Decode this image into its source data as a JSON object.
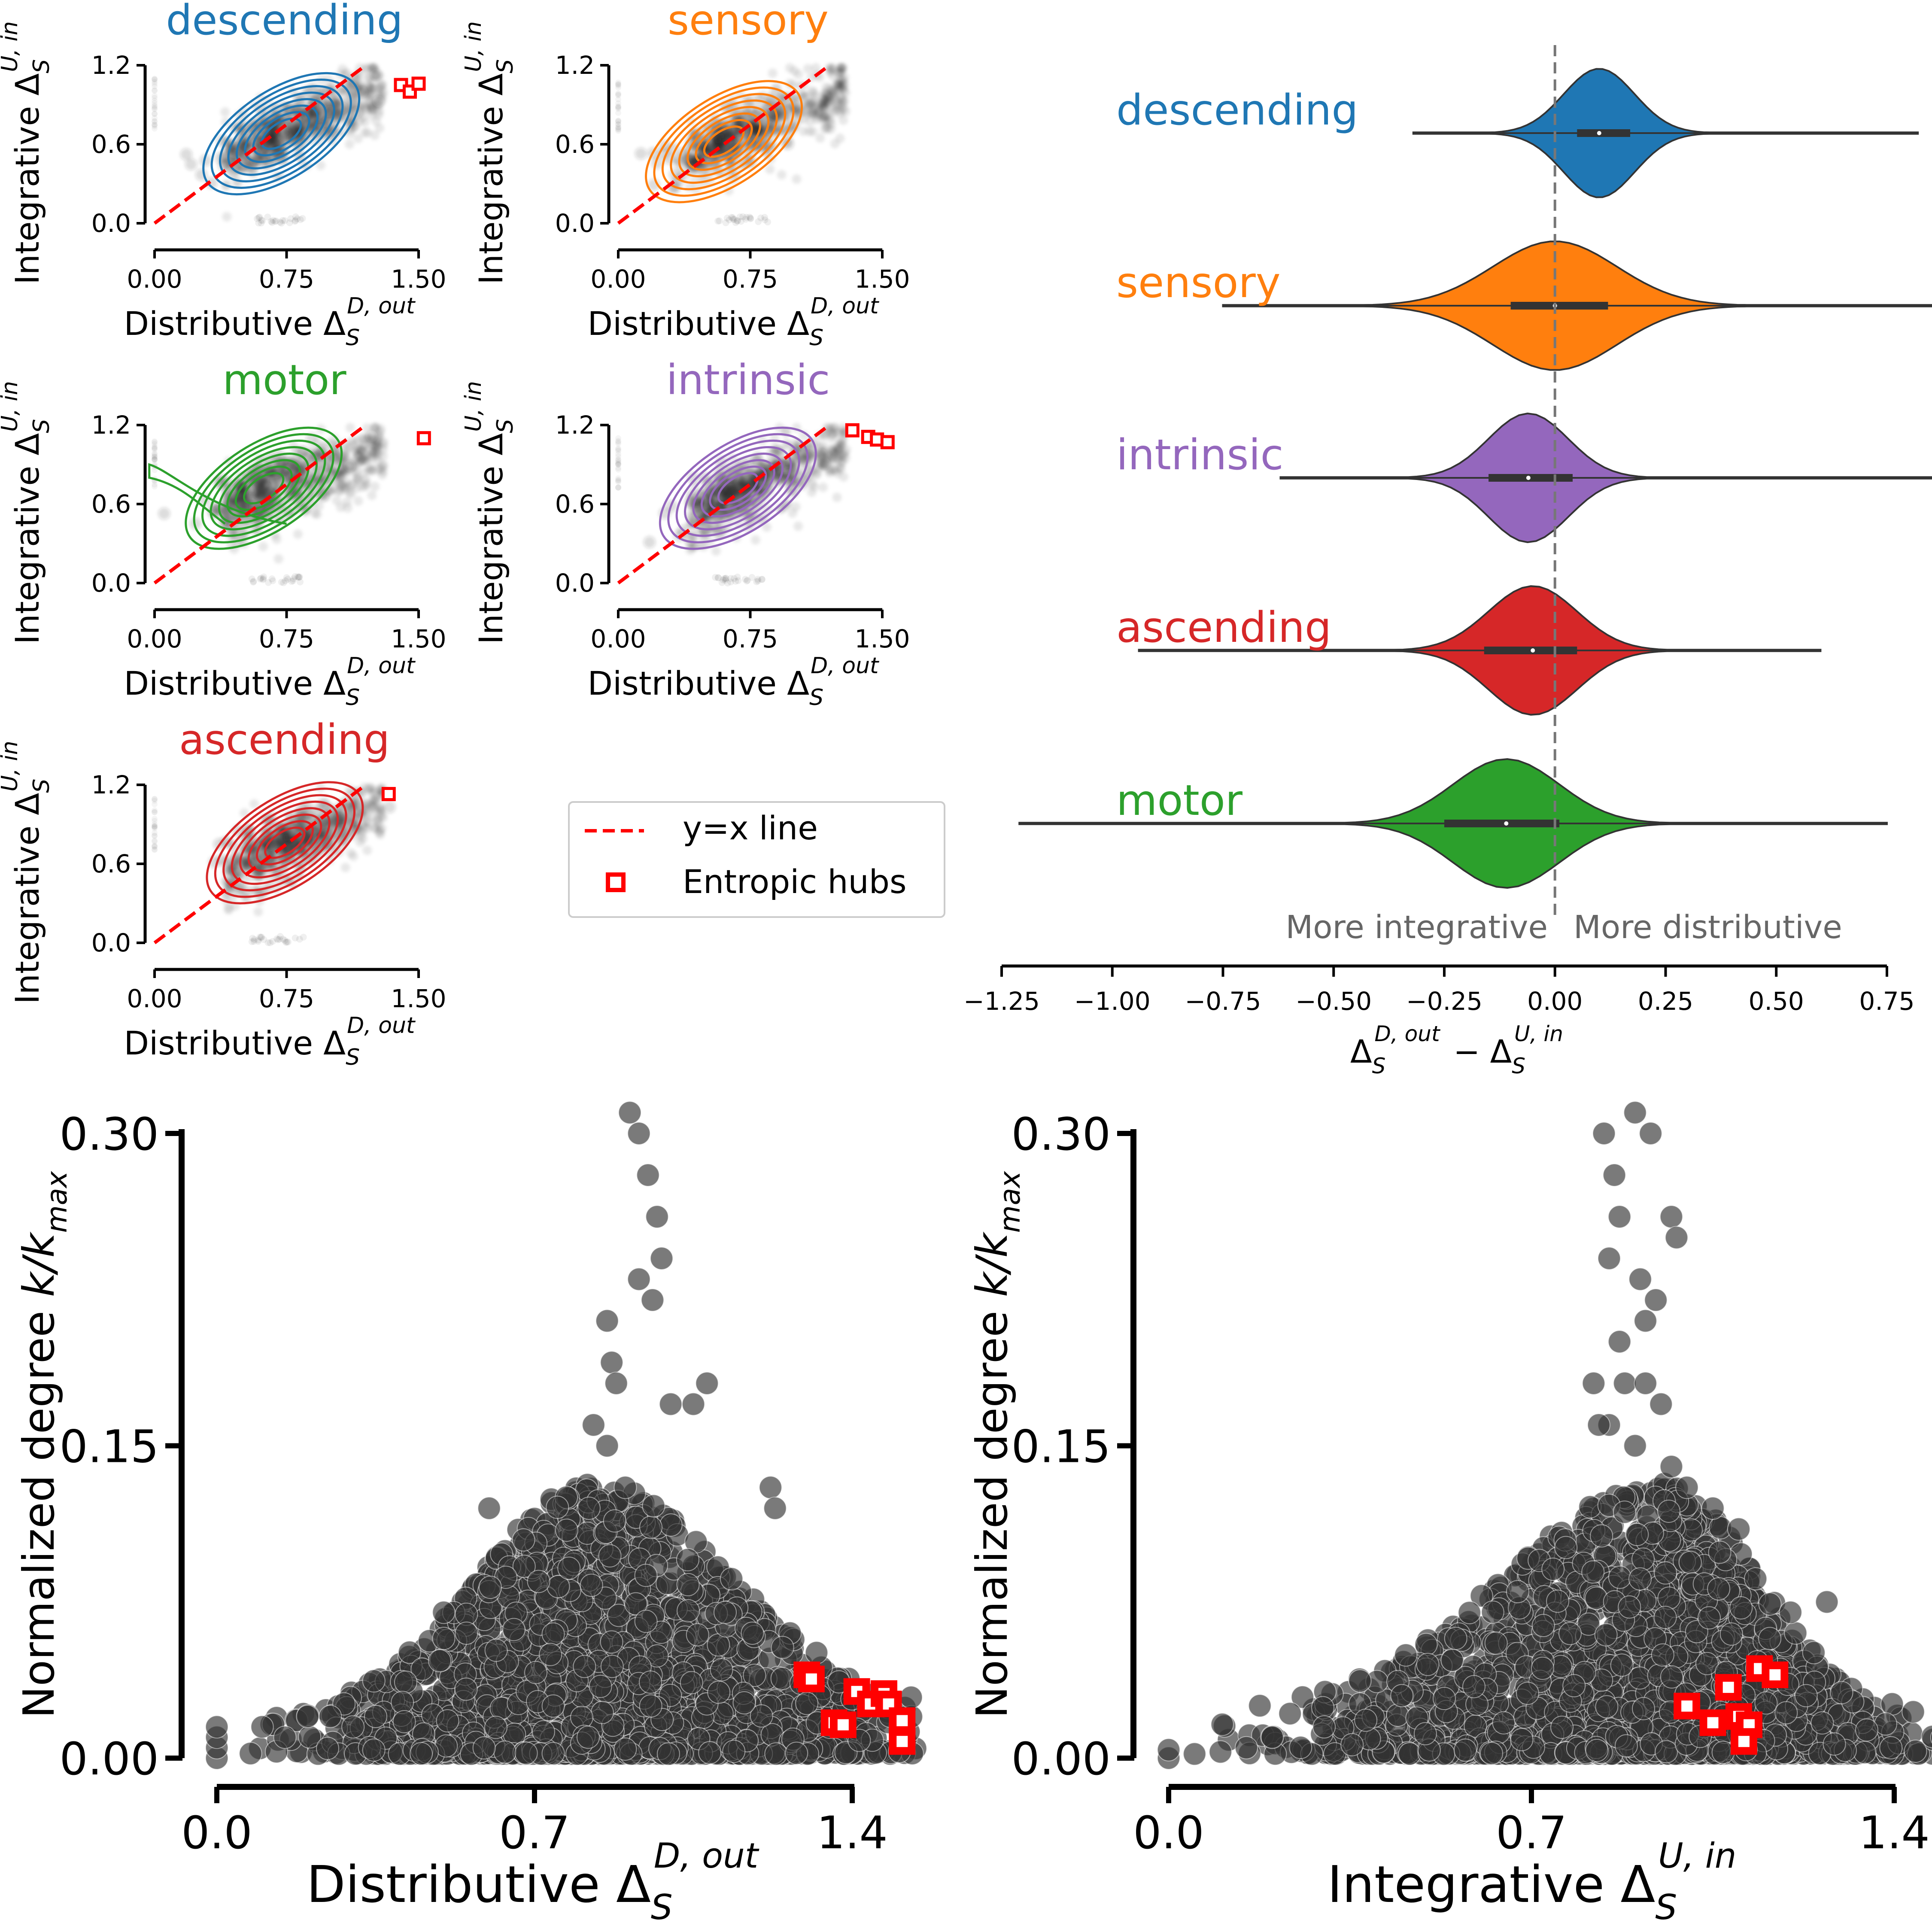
{
  "small_panels": {
    "xlabel_main": "Distributive Δ",
    "xlabel_sub": "S",
    "xlabel_sup": "D, out",
    "ylabel_main": "Integrative Δ",
    "ylabel_sub": "S",
    "ylabel_sup": "U, in"
  },
  "legend": {
    "yx_line": "y=x line",
    "hubs": "Entropic hubs"
  },
  "violin": {
    "xlabel_a": "Δ",
    "xlabel_a_sub": "S",
    "xlabel_a_sup": "D, out",
    "xlabel_minus": "−",
    "xlabel_b": "Δ",
    "xlabel_b_sub": "S",
    "xlabel_b_sup": "U, in",
    "more_integrative": "More integrative",
    "more_distributive": "More distributive"
  },
  "bottom": {
    "ylabel": "Normalized degree ",
    "ylabel_k": "k/k",
    "ylabel_k_sub": "max",
    "left_xlabel_main": "Distributive Δ",
    "left_xlabel_sub": "S",
    "left_xlabel_sup": "D, out",
    "right_xlabel_main": "Integrative Δ",
    "right_xlabel_sub": "S",
    "right_xlabel_sup": "U, in"
  },
  "colors": {
    "descending": "#1f77b4",
    "sensory": "#ff7f0e",
    "motor": "#2ca02c",
    "intrinsic": "#9467bd",
    "ascending": "#d62728",
    "hub": "#ff0000",
    "points": "#333333",
    "vline": "#777777",
    "annot": "#666666"
  },
  "chart_data": [
    {
      "type": "scatter",
      "title": "descending",
      "xlabel": "Distributive Δ_S^{D,out}",
      "ylabel": "Integrative Δ_S^{U,in}",
      "x_ticks": [
        "0.00",
        "0.75",
        "1.50"
      ],
      "y_ticks": [
        "0.0",
        "0.6",
        "1.2"
      ],
      "xlim": [
        0,
        1.5
      ],
      "ylim": [
        0,
        1.2
      ],
      "center": [
        0.72,
        0.68
      ],
      "hubs": [
        [
          1.4,
          1.05
        ],
        [
          1.45,
          1.0
        ],
        [
          1.5,
          1.06
        ]
      ]
    },
    {
      "type": "scatter",
      "title": "sensory",
      "xlabel": "Distributive Δ_S^{D,out}",
      "ylabel": "Integrative Δ_S^{U,in}",
      "x_ticks": [
        "0.00",
        "0.75",
        "1.50"
      ],
      "y_ticks": [
        "0.0",
        "0.6",
        "1.2"
      ],
      "xlim": [
        0,
        1.5
      ],
      "ylim": [
        0,
        1.2
      ],
      "center": [
        0.6,
        0.62
      ],
      "hubs": []
    },
    {
      "type": "scatter",
      "title": "motor",
      "xlabel": "Distributive Δ_S^{D,out}",
      "ylabel": "Integrative Δ_S^{U,in}",
      "x_ticks": [
        "0.00",
        "0.75",
        "1.50"
      ],
      "y_ticks": [
        "0.0",
        "0.6",
        "1.2"
      ],
      "xlim": [
        0,
        1.5
      ],
      "ylim": [
        0,
        1.2
      ],
      "center": [
        0.62,
        0.72
      ],
      "hubs": [
        [
          1.53,
          1.1
        ]
      ]
    },
    {
      "type": "scatter",
      "title": "intrinsic",
      "xlabel": "Distributive Δ_S^{D,out}",
      "ylabel": "Integrative Δ_S^{U,in}",
      "x_ticks": [
        "0.00",
        "0.75",
        "1.50"
      ],
      "y_ticks": [
        "0.0",
        "0.6",
        "1.2"
      ],
      "xlim": [
        0,
        1.5
      ],
      "ylim": [
        0,
        1.2
      ],
      "center": [
        0.68,
        0.72
      ],
      "hubs": [
        [
          1.33,
          1.16
        ],
        [
          1.42,
          1.11
        ],
        [
          1.47,
          1.09
        ],
        [
          1.53,
          1.07
        ]
      ]
    },
    {
      "type": "scatter",
      "title": "ascending",
      "xlabel": "Distributive Δ_S^{D,out}",
      "ylabel": "Integrative Δ_S^{U,in}",
      "x_ticks": [
        "0.00",
        "0.75",
        "1.50"
      ],
      "y_ticks": [
        "0.0",
        "0.6",
        "1.2"
      ],
      "xlim": [
        0,
        1.5
      ],
      "ylim": [
        0,
        1.2
      ],
      "center": [
        0.74,
        0.76
      ],
      "hubs": [
        [
          1.33,
          1.13
        ]
      ]
    },
    {
      "type": "violin",
      "xlabel": "Δ_S^{D,out} − Δ_S^{U,in}",
      "x_ticks": [
        "−1.25",
        "−1.00",
        "−0.75",
        "−0.50",
        "−0.25",
        "0.00",
        "0.25",
        "0.50",
        "0.75"
      ],
      "x_tick_values": [
        -1.25,
        -1.0,
        -0.75,
        -0.5,
        -0.25,
        0.0,
        0.25,
        0.5,
        0.75
      ],
      "xlim": [
        -1.25,
        0.75
      ],
      "reference_line": 0.0,
      "series": [
        {
          "name": "descending",
          "median": 0.1,
          "q1": 0.05,
          "q3": 0.17,
          "min": -0.32,
          "max": 0.82,
          "sd": 0.08
        },
        {
          "name": "sensory",
          "median": 0.0,
          "q1": -0.1,
          "q3": 0.12,
          "min": -0.75,
          "max": 0.94,
          "sd": 0.14
        },
        {
          "name": "intrinsic",
          "median": -0.06,
          "q1": -0.15,
          "q3": 0.04,
          "min": -0.62,
          "max": 0.92,
          "sd": 0.09
        },
        {
          "name": "ascending",
          "median": -0.05,
          "q1": -0.16,
          "q3": 0.05,
          "min": -0.94,
          "max": 0.6,
          "sd": 0.1
        },
        {
          "name": "motor",
          "median": -0.11,
          "q1": -0.25,
          "q3": 0.01,
          "min": -1.21,
          "max": 0.75,
          "sd": 0.12
        }
      ]
    },
    {
      "type": "scatter",
      "xlabel": "Distributive Δ_S^{D,out}",
      "ylabel": "Normalized degree k/k_max",
      "x_ticks": [
        "0.0",
        "0.7",
        "1.4"
      ],
      "y_ticks": [
        "0.00",
        "0.15",
        "0.30"
      ],
      "xlim": [
        0,
        1.4
      ],
      "ylim": [
        0,
        0.3
      ],
      "points_sample": [
        [
          0.91,
          0.31
        ],
        [
          0.93,
          0.3
        ],
        [
          0.95,
          0.28
        ],
        [
          0.97,
          0.26
        ],
        [
          0.93,
          0.23
        ],
        [
          0.96,
          0.22
        ],
        [
          0.98,
          0.24
        ],
        [
          0.86,
          0.21
        ],
        [
          0.87,
          0.19
        ],
        [
          0.88,
          0.18
        ],
        [
          1.08,
          0.18
        ],
        [
          1.0,
          0.17
        ],
        [
          1.05,
          0.17
        ],
        [
          0.83,
          0.16
        ],
        [
          0.86,
          0.15
        ],
        [
          0.82,
          0.12
        ],
        [
          0.9,
          0.13
        ],
        [
          1.22,
          0.13
        ],
        [
          1.23,
          0.12
        ],
        [
          0.6,
          0.12
        ],
        [
          0.5,
          0.07
        ],
        [
          0.55,
          0.06
        ],
        [
          1.18,
          0.06
        ],
        [
          1.12,
          0.07
        ],
        [
          0.0,
          0.0
        ],
        [
          0.0,
          0.005
        ],
        [
          0.0,
          0.01
        ],
        [
          0.0,
          0.015
        ],
        [
          0.1,
          0.015
        ],
        [
          0.15,
          0.01
        ],
        [
          0.2,
          0.02
        ],
        [
          0.25,
          0.02
        ],
        [
          0.3,
          0.015
        ],
        [
          0.35,
          0.02
        ]
      ],
      "hubs": [
        [
          1.3,
          0.04
        ],
        [
          1.31,
          0.038
        ],
        [
          1.36,
          0.017
        ],
        [
          1.38,
          0.016
        ],
        [
          1.41,
          0.032
        ],
        [
          1.44,
          0.026
        ],
        [
          1.47,
          0.031
        ],
        [
          1.48,
          0.026
        ],
        [
          1.51,
          0.018
        ],
        [
          1.51,
          0.008
        ]
      ]
    },
    {
      "type": "scatter",
      "xlabel": "Integrative Δ_S^{U,in}",
      "ylabel": "Normalized degree k/k_max",
      "x_ticks": [
        "0.0",
        "0.7",
        "1.4"
      ],
      "y_ticks": [
        "0.00",
        "0.15",
        "0.30"
      ],
      "xlim": [
        0,
        1.4
      ],
      "ylim": [
        0,
        0.3
      ],
      "points_sample": [
        [
          0.84,
          0.3
        ],
        [
          0.9,
          0.31
        ],
        [
          0.93,
          0.3
        ],
        [
          0.86,
          0.28
        ],
        [
          0.87,
          0.26
        ],
        [
          0.97,
          0.26
        ],
        [
          0.98,
          0.25
        ],
        [
          0.85,
          0.24
        ],
        [
          0.91,
          0.23
        ],
        [
          0.94,
          0.22
        ],
        [
          0.92,
          0.21
        ],
        [
          0.87,
          0.2
        ],
        [
          0.88,
          0.18
        ],
        [
          0.92,
          0.18
        ],
        [
          0.95,
          0.17
        ],
        [
          0.82,
          0.18
        ],
        [
          0.85,
          0.16
        ],
        [
          0.83,
          0.16
        ],
        [
          0.9,
          0.15
        ],
        [
          0.97,
          0.14
        ],
        [
          1.0,
          0.13
        ],
        [
          1.05,
          0.12
        ],
        [
          1.1,
          0.11
        ],
        [
          1.2,
          0.07
        ],
        [
          1.27,
          0.075
        ],
        [
          1.23,
          0.03
        ],
        [
          0.0,
          0.0
        ],
        [
          0.0,
          0.004
        ],
        [
          0.05,
          0.002
        ],
        [
          0.1,
          0.003
        ],
        [
          0.15,
          0.005
        ],
        [
          0.2,
          0.01
        ],
        [
          0.3,
          0.015
        ],
        [
          0.45,
          0.03
        ],
        [
          0.5,
          0.045
        ]
      ],
      "hubs": [
        [
          1.0,
          0.025
        ],
        [
          1.05,
          0.017
        ],
        [
          1.08,
          0.034
        ],
        [
          1.1,
          0.02
        ],
        [
          1.12,
          0.016
        ],
        [
          1.11,
          0.008
        ],
        [
          1.14,
          0.043
        ],
        [
          1.17,
          0.04
        ]
      ]
    }
  ]
}
